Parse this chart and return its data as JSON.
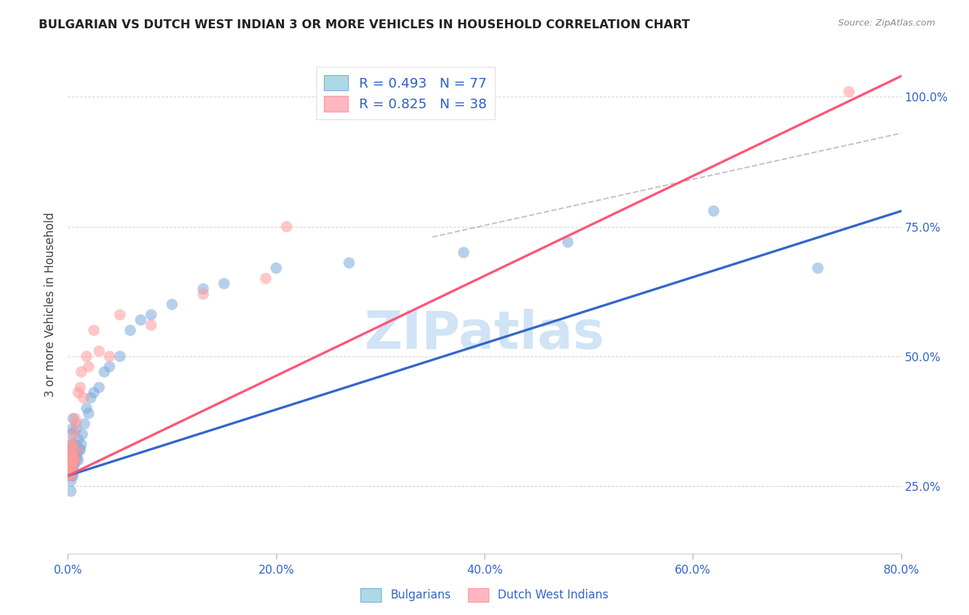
{
  "title": "BULGARIAN VS DUTCH WEST INDIAN 3 OR MORE VEHICLES IN HOUSEHOLD CORRELATION CHART",
  "source": "Source: ZipAtlas.com",
  "ylabel": "3 or more Vehicles in Household",
  "xlim": [
    0.0,
    0.8
  ],
  "ylim": [
    0.12,
    1.08
  ],
  "x_tick_vals": [
    0.0,
    0.2,
    0.4,
    0.6,
    0.8
  ],
  "x_tick_labels": [
    "0.0%",
    "20.0%",
    "40.0%",
    "60.0%",
    "80.0%"
  ],
  "y_tick_vals": [
    0.25,
    0.5,
    0.75,
    1.0
  ],
  "y_tick_labels": [
    "25.0%",
    "50.0%",
    "75.0%",
    "100.0%"
  ],
  "watermark": "ZIPatlas",
  "legend_r1": "R = 0.493",
  "legend_n1": "N = 77",
  "legend_r2": "R = 0.825",
  "legend_n2": "N = 38",
  "bulgarian_color": "#7AABDB",
  "dutch_color": "#FF9999",
  "blue_line_color": "#3366CC",
  "pink_line_color": "#FF5577",
  "dashed_line_color": "#AAAAAA",
  "bg_color": "#FFFFFF",
  "bulgarian_scatter_x": [
    0.002,
    0.002,
    0.003,
    0.003,
    0.003,
    0.003,
    0.003,
    0.003,
    0.003,
    0.003,
    0.003,
    0.003,
    0.003,
    0.003,
    0.003,
    0.003,
    0.003,
    0.003,
    0.003,
    0.003,
    0.004,
    0.004,
    0.004,
    0.004,
    0.004,
    0.004,
    0.004,
    0.004,
    0.004,
    0.004,
    0.005,
    0.005,
    0.005,
    0.005,
    0.005,
    0.005,
    0.005,
    0.005,
    0.005,
    0.005,
    0.006,
    0.006,
    0.006,
    0.006,
    0.007,
    0.007,
    0.008,
    0.008,
    0.008,
    0.009,
    0.01,
    0.01,
    0.011,
    0.012,
    0.013,
    0.014,
    0.016,
    0.018,
    0.02,
    0.022,
    0.025,
    0.03,
    0.035,
    0.04,
    0.05,
    0.06,
    0.07,
    0.08,
    0.1,
    0.13,
    0.15,
    0.2,
    0.27,
    0.38,
    0.48,
    0.62,
    0.72
  ],
  "bulgarian_scatter_y": [
    0.27,
    0.29,
    0.24,
    0.26,
    0.27,
    0.28,
    0.28,
    0.29,
    0.29,
    0.3,
    0.3,
    0.3,
    0.3,
    0.31,
    0.31,
    0.31,
    0.32,
    0.32,
    0.33,
    0.35,
    0.27,
    0.28,
    0.28,
    0.29,
    0.29,
    0.3,
    0.3,
    0.31,
    0.32,
    0.36,
    0.27,
    0.28,
    0.29,
    0.29,
    0.3,
    0.3,
    0.31,
    0.32,
    0.33,
    0.38,
    0.29,
    0.3,
    0.31,
    0.32,
    0.3,
    0.33,
    0.3,
    0.32,
    0.36,
    0.31,
    0.3,
    0.34,
    0.32,
    0.32,
    0.33,
    0.35,
    0.37,
    0.4,
    0.39,
    0.42,
    0.43,
    0.44,
    0.47,
    0.48,
    0.5,
    0.55,
    0.57,
    0.58,
    0.6,
    0.63,
    0.64,
    0.67,
    0.68,
    0.7,
    0.72,
    0.78,
    0.67
  ],
  "dutch_scatter_x": [
    0.002,
    0.002,
    0.002,
    0.002,
    0.003,
    0.003,
    0.003,
    0.003,
    0.003,
    0.003,
    0.004,
    0.004,
    0.004,
    0.004,
    0.005,
    0.005,
    0.005,
    0.006,
    0.006,
    0.007,
    0.007,
    0.008,
    0.009,
    0.01,
    0.012,
    0.013,
    0.015,
    0.018,
    0.02,
    0.025,
    0.03,
    0.04,
    0.05,
    0.08,
    0.13,
    0.19,
    0.21,
    0.75
  ],
  "dutch_scatter_y": [
    0.27,
    0.28,
    0.29,
    0.3,
    0.27,
    0.28,
    0.29,
    0.3,
    0.31,
    0.33,
    0.28,
    0.29,
    0.31,
    0.33,
    0.28,
    0.3,
    0.32,
    0.3,
    0.35,
    0.3,
    0.38,
    0.37,
    0.32,
    0.43,
    0.44,
    0.47,
    0.42,
    0.5,
    0.48,
    0.55,
    0.51,
    0.5,
    0.58,
    0.56,
    0.62,
    0.65,
    0.75,
    1.01
  ],
  "blue_line_x": [
    0.0,
    0.8
  ],
  "blue_line_y": [
    0.27,
    0.78
  ],
  "pink_line_x": [
    0.0,
    0.8
  ],
  "pink_line_y": [
    0.27,
    1.04
  ],
  "dashed_line_x": [
    0.35,
    0.8
  ],
  "dashed_line_y": [
    0.73,
    0.93
  ]
}
